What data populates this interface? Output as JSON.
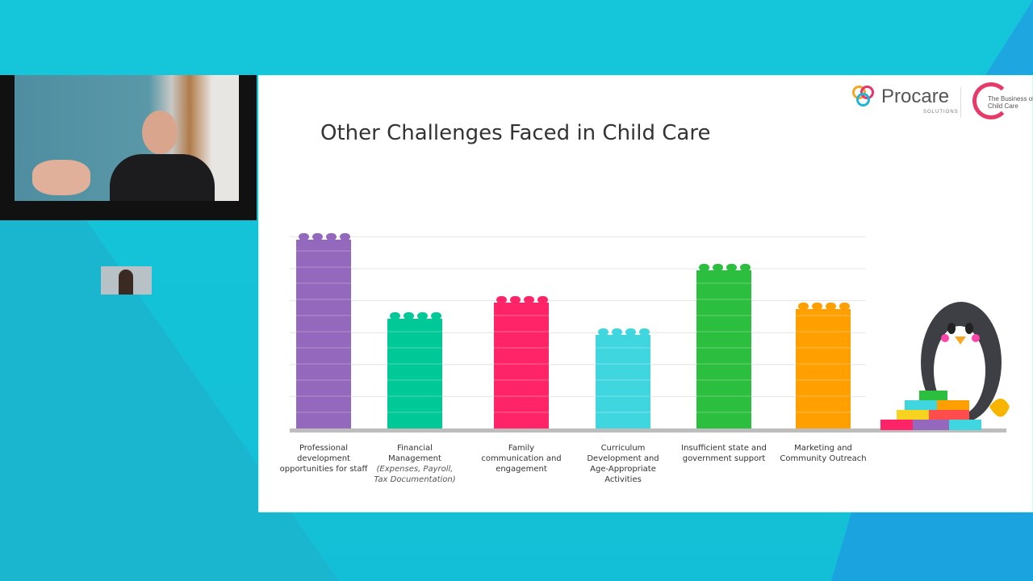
{
  "slide": {
    "title": "Other Challenges Faced in Child Care",
    "logo_procare": "Procare",
    "logo_procare_sub": "SOLUTIONS",
    "logo_boc": "The Business of Child Care"
  },
  "chart_data": {
    "type": "bar",
    "title": "Other Challenges Faced in Child Care",
    "xlabel": "",
    "ylabel": "",
    "ylim": [
      0,
      6
    ],
    "grid": true,
    "categories": [
      "Professional development opportunities for staff",
      "Financial Management (Expenses, Payroll, Tax Documentation)",
      "Family communication and engagement",
      "Curriculum Development and Age-Appropriate Activities",
      "Insufficient state and government support",
      "Marketing and Community Outreach"
    ],
    "category_labels": [
      {
        "main": "Professional development opportunities for staff",
        "note": ""
      },
      {
        "main": "Financial Management",
        "note": "(Expenses, Payroll, Tax Documentation)"
      },
      {
        "main": "Family communication and engagement",
        "note": ""
      },
      {
        "main": "Curriculum Development and Age-Appropriate Activities",
        "note": ""
      },
      {
        "main": "Insufficient state and government support",
        "note": ""
      },
      {
        "main": "Marketing and Community Outreach",
        "note": ""
      }
    ],
    "values": [
      5.85,
      3.4,
      3.9,
      2.9,
      4.9,
      3.7
    ],
    "colors": [
      "#9368bd",
      "#00c896",
      "#ff2467",
      "#40d6e0",
      "#2cbe3e",
      "#ffa000"
    ]
  }
}
